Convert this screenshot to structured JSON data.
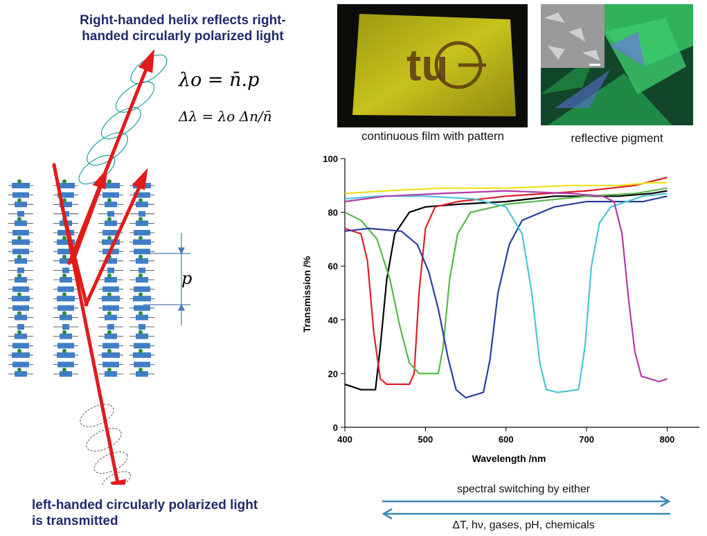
{
  "left_panel": {
    "heading_top_line1": "Right-handed helix reflects right-",
    "heading_top_line2": "handed circularly  polarized light",
    "formula_1": "λo = n̄.p",
    "formula_2": "Δλ = λo Δn/n̄",
    "pitch_label": "p",
    "heading_bottom_line1": "left-handed circularly  polarized light",
    "heading_bottom_line2": "is transmitted",
    "colors": {
      "heading": "#1f2a6b",
      "arrow": "#e21b1b",
      "mesogen": "#3f7ec6",
      "helix": "#1aa2a0"
    }
  },
  "photos": {
    "film_caption": "continuous film with pattern",
    "film_logo_text": "tu",
    "pigment_caption": "reflective pigment"
  },
  "arrows": {
    "label_top": "spectral switching by either",
    "label_bottom": "ΔT, hν, gases, pH, chemicals",
    "color": "#3a86b8"
  },
  "chart_data": {
    "type": "line",
    "xlabel": "Wavelength /nm",
    "ylabel": "Transmission /%",
    "xlim": [
      400,
      840
    ],
    "ylim": [
      0,
      100
    ],
    "x_ticks": [
      400,
      500,
      600,
      700,
      800
    ],
    "y_ticks": [
      0,
      20,
      40,
      60,
      80,
      100
    ],
    "grid": false,
    "series": [
      {
        "color": "#000000",
        "points": [
          [
            400,
            16
          ],
          [
            420,
            14
          ],
          [
            438,
            14
          ],
          [
            444,
            30
          ],
          [
            452,
            55
          ],
          [
            462,
            72
          ],
          [
            480,
            80
          ],
          [
            500,
            82
          ],
          [
            540,
            83
          ],
          [
            600,
            84
          ],
          [
            660,
            86
          ],
          [
            700,
            86
          ],
          [
            740,
            86
          ],
          [
            780,
            87
          ],
          [
            800,
            88
          ]
        ]
      },
      {
        "color": "#e01e24",
        "points": [
          [
            400,
            74
          ],
          [
            420,
            72
          ],
          [
            428,
            62
          ],
          [
            436,
            35
          ],
          [
            444,
            18
          ],
          [
            452,
            16
          ],
          [
            480,
            16
          ],
          [
            486,
            20
          ],
          [
            492,
            50
          ],
          [
            500,
            74
          ],
          [
            512,
            82
          ],
          [
            540,
            84
          ],
          [
            600,
            86
          ],
          [
            700,
            88
          ],
          [
            760,
            90
          ],
          [
            800,
            93
          ]
        ]
      },
      {
        "color": "#55b848",
        "points": [
          [
            400,
            80
          ],
          [
            420,
            77
          ],
          [
            440,
            70
          ],
          [
            456,
            55
          ],
          [
            468,
            38
          ],
          [
            480,
            24
          ],
          [
            492,
            20
          ],
          [
            516,
            20
          ],
          [
            522,
            30
          ],
          [
            530,
            55
          ],
          [
            540,
            72
          ],
          [
            556,
            80
          ],
          [
            600,
            83
          ],
          [
            700,
            86
          ],
          [
            760,
            87
          ],
          [
            800,
            89
          ]
        ]
      },
      {
        "color": "#2a3da0",
        "points": [
          [
            400,
            73
          ],
          [
            430,
            74
          ],
          [
            470,
            73
          ],
          [
            490,
            68
          ],
          [
            504,
            58
          ],
          [
            516,
            44
          ],
          [
            528,
            26
          ],
          [
            538,
            14
          ],
          [
            550,
            11
          ],
          [
            572,
            13
          ],
          [
            580,
            25
          ],
          [
            590,
            50
          ],
          [
            604,
            68
          ],
          [
            620,
            77
          ],
          [
            660,
            82
          ],
          [
            700,
            84
          ],
          [
            740,
            84
          ],
          [
            770,
            84
          ],
          [
            800,
            86
          ]
        ]
      },
      {
        "color": "#4ac5d6",
        "points": [
          [
            400,
            85
          ],
          [
            440,
            86
          ],
          [
            500,
            86
          ],
          [
            560,
            85
          ],
          [
            600,
            82
          ],
          [
            620,
            72
          ],
          [
            632,
            50
          ],
          [
            642,
            24
          ],
          [
            650,
            14
          ],
          [
            664,
            13
          ],
          [
            690,
            14
          ],
          [
            698,
            30
          ],
          [
            706,
            60
          ],
          [
            716,
            76
          ],
          [
            730,
            82
          ],
          [
            770,
            86
          ],
          [
            800,
            87
          ]
        ]
      },
      {
        "color": "#b23aa8",
        "points": [
          [
            400,
            84
          ],
          [
            450,
            86
          ],
          [
            520,
            87
          ],
          [
            600,
            88
          ],
          [
            680,
            87
          ],
          [
            720,
            86
          ],
          [
            734,
            84
          ],
          [
            744,
            72
          ],
          [
            752,
            48
          ],
          [
            760,
            28
          ],
          [
            768,
            19
          ],
          [
            790,
            17
          ],
          [
            800,
            18
          ]
        ]
      },
      {
        "color": "#f0e21a",
        "points": [
          [
            400,
            87
          ],
          [
            450,
            88
          ],
          [
            520,
            89
          ],
          [
            600,
            89
          ],
          [
            680,
            90
          ],
          [
            740,
            90
          ],
          [
            780,
            91
          ],
          [
            800,
            91
          ]
        ]
      }
    ]
  }
}
